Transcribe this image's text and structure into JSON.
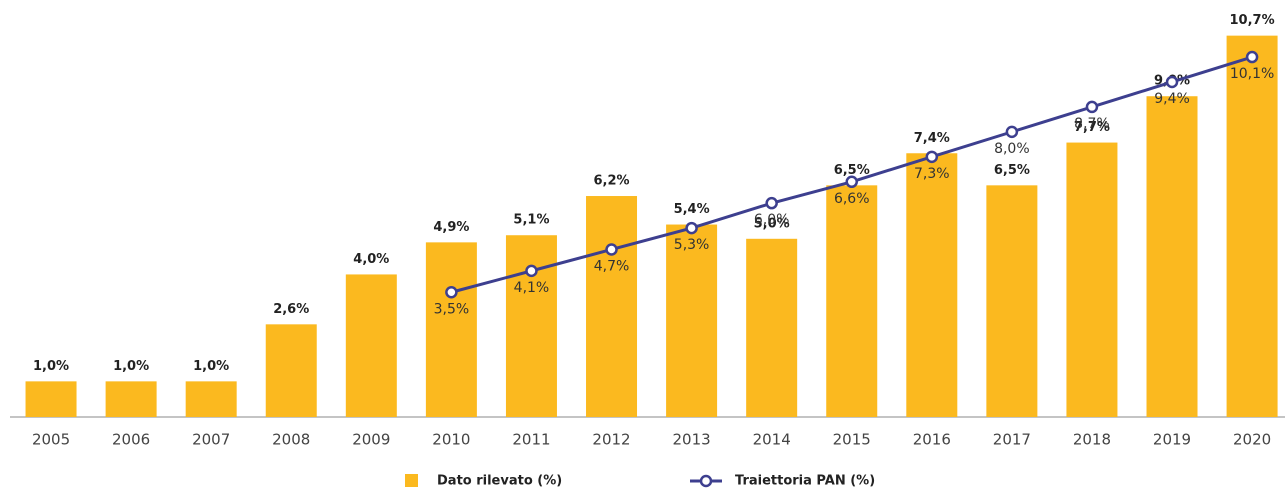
{
  "chart_data": {
    "type": "bar",
    "categories": [
      "2005",
      "2006",
      "2007",
      "2008",
      "2009",
      "2010",
      "2011",
      "2012",
      "2013",
      "2014",
      "2015",
      "2016",
      "2017",
      "2018",
      "2019",
      "2020"
    ],
    "ylim": [
      0,
      11.7
    ],
    "legend": "bottom",
    "series": [
      {
        "name": "Dato rilevato (%)",
        "type": "bar",
        "color": "#fbb91f",
        "values": [
          1.0,
          1.0,
          1.0,
          2.6,
          4.0,
          4.9,
          5.1,
          6.2,
          5.4,
          5.0,
          6.5,
          7.4,
          6.5,
          7.7,
          9.0,
          10.7
        ],
        "value_labels": [
          "1,0%",
          "1,0%",
          "1,0%",
          "2,6%",
          "4,0%",
          "4,9%",
          "5,1%",
          "6,2%",
          "5,4%",
          "5,0%",
          "6,5%",
          "7,4%",
          "6,5%",
          "7,7%",
          "9,0%",
          "10,7%"
        ]
      },
      {
        "name": "Traiettoria PAN (%)",
        "type": "line",
        "color": "#3d3f8f",
        "values": [
          null,
          null,
          null,
          null,
          null,
          3.5,
          4.1,
          4.7,
          5.3,
          6.0,
          6.6,
          7.3,
          8.0,
          8.7,
          9.4,
          10.1
        ],
        "value_labels": [
          null,
          null,
          null,
          null,
          null,
          "3,5%",
          "4,1%",
          "4,7%",
          "5,3%",
          "6,0%",
          "6,6%",
          "7,3%",
          "8,0%",
          "8,7%",
          "9,4%",
          "10,1%"
        ]
      }
    ]
  }
}
